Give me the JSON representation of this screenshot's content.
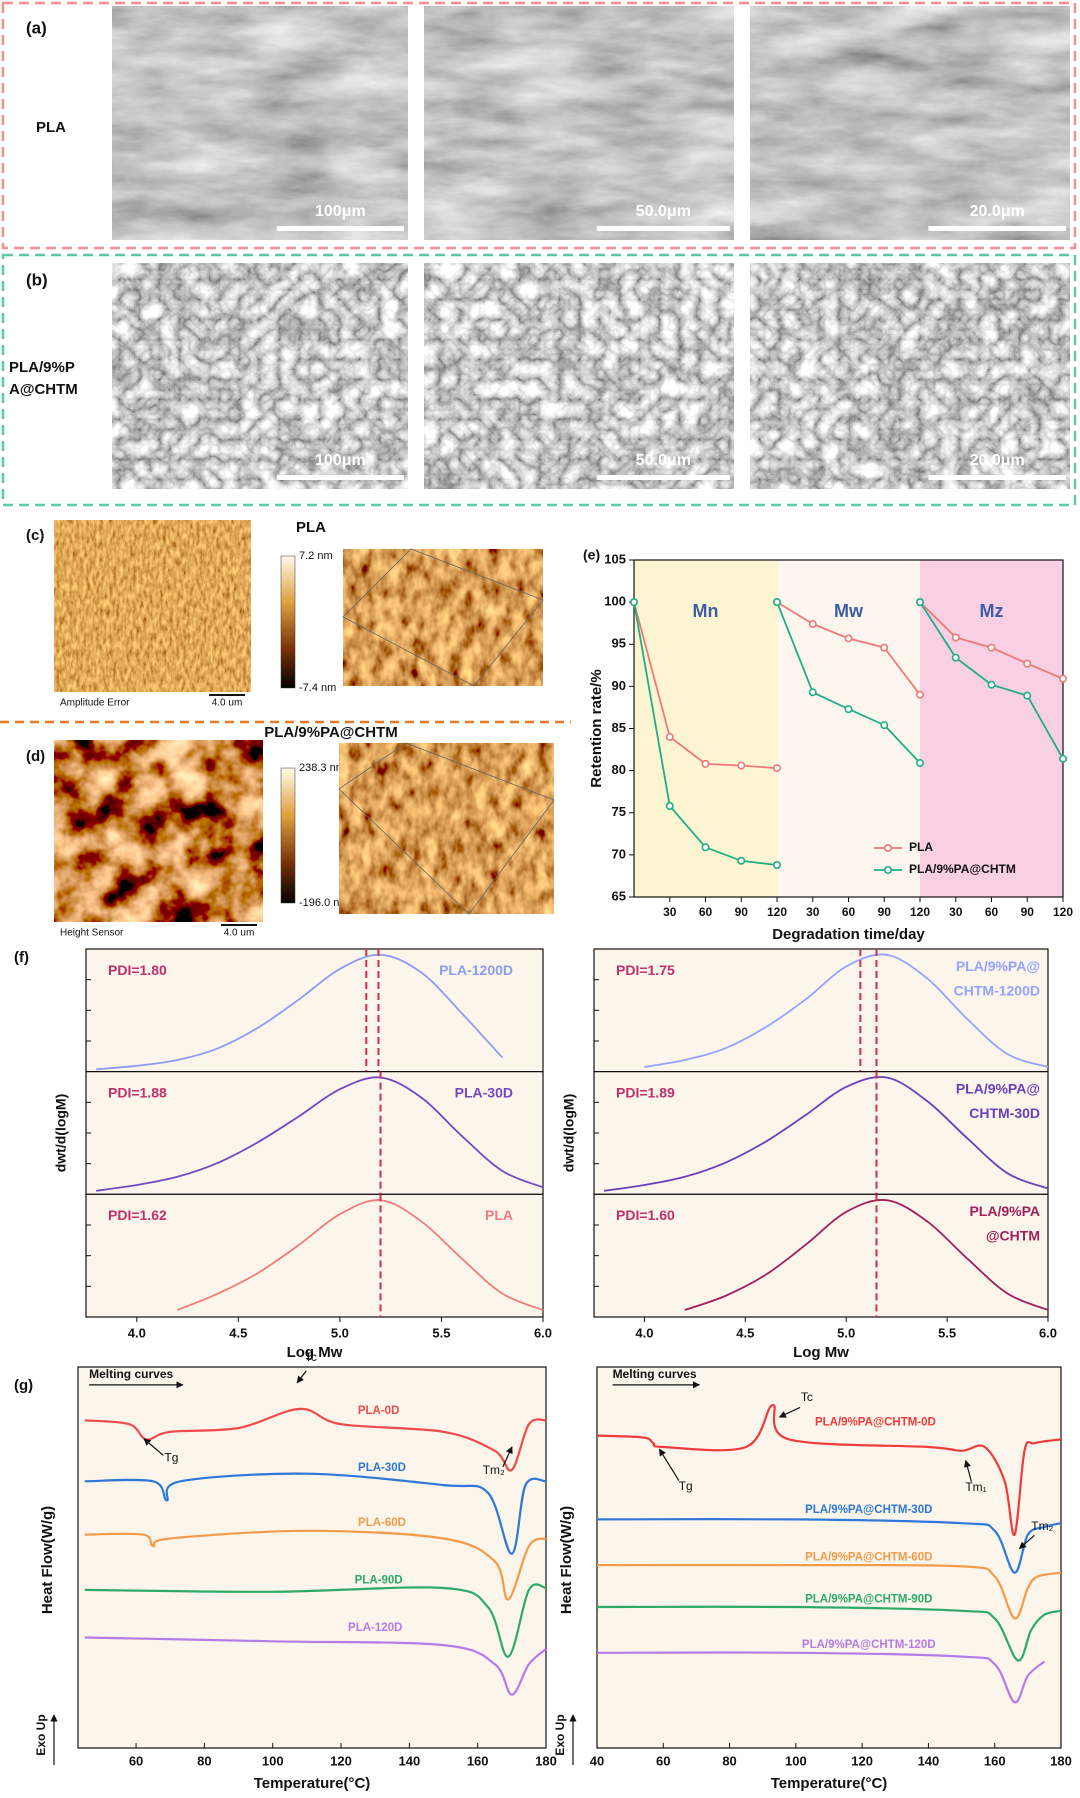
{
  "figure": {
    "a": {
      "label": "(a)",
      "sample": "PLA",
      "scale_bars": [
        "100μm",
        "50.0μm",
        "20.0μm"
      ]
    },
    "b": {
      "label": "(b)",
      "sample": [
        "PLA/9%P",
        "A@CHTM"
      ],
      "scale_bars": [
        "100μm",
        "50.0μm",
        "20.0μm"
      ]
    },
    "c": {
      "label": "(c)",
      "title": "PLA",
      "color_max": "7.2 nm",
      "color_min": "-7.4 nm",
      "channel": "Amplitude Error",
      "scale": "4.0 um"
    },
    "d": {
      "label": "(d)",
      "title": "PLA/9%PA@CHTM",
      "color_max": "238.3 nm",
      "color_min": "-196.0 nm",
      "channel": "Height Sensor",
      "scale": "4.0 um"
    }
  },
  "chart_data": [
    {
      "type": "segmented-line",
      "panel_label": "(e)",
      "y_label": "Retention rate/%",
      "x_label": "Degradation time/day",
      "ylim": [
        65,
        105
      ],
      "yticks": [
        65,
        70,
        75,
        80,
        85,
        90,
        95,
        100,
        105
      ],
      "xlim": [
        0,
        120
      ],
      "xticks": [
        30,
        60,
        90,
        120
      ],
      "x": [
        0,
        30,
        60,
        90,
        120,
        0,
        30,
        60,
        90,
        120,
        0,
        30,
        60,
        90,
        120
      ],
      "segments": [
        {
          "name": "Mn",
          "color": "#fdf5d2"
        },
        {
          "name": "Mw",
          "color": "#fdf6ee"
        },
        {
          "name": "Mz",
          "color": "#f9cfe3"
        }
      ],
      "series": [
        {
          "name": "PLA",
          "color": "#ec7a78",
          "values": [
            100,
            84,
            80.8,
            80.6,
            80.3,
            100,
            97.4,
            95.7,
            94.6,
            89,
            100,
            95.8,
            94.6,
            92.7,
            90.9
          ]
        },
        {
          "name": "PLA/9%PA@CHTM",
          "color": "#1fae86",
          "values": [
            100,
            75.8,
            70.9,
            69.3,
            68.8,
            100,
            89.3,
            87.3,
            85.4,
            80.9,
            100,
            93.4,
            90.2,
            88.9,
            81.4
          ]
        }
      ],
      "legend": "lower right"
    },
    {
      "type": "stacked-curves",
      "panel_label": "(f)",
      "y_label": "dwt/d(logM)",
      "x_label": "Log Mw",
      "xlim": [
        3.75,
        6.0
      ],
      "xticks": [
        {
          "value": 4,
          "label": "4.0"
        },
        {
          "value": 4.5,
          "label": "4.5"
        },
        {
          "value": 5,
          "label": "5.0"
        },
        {
          "value": 5.5,
          "label": "5.5"
        },
        {
          "value": 6,
          "label": "6.0"
        }
      ],
      "ylim": [
        0,
        1.05
      ],
      "x": [
        3.8,
        4.0,
        4.2,
        4.4,
        4.6,
        4.8,
        5.0,
        5.2,
        5.4,
        5.6,
        5.8,
        6.0
      ],
      "subplots": [
        {
          "label": [
            "PLA-1200D"
          ],
          "pdi": "PDI=1.80",
          "color": "#8e9cf2",
          "values": [
            0.02,
            0.05,
            0.1,
            0.2,
            0.38,
            0.62,
            0.88,
            1.0,
            0.85,
            0.5,
            0.12,
            null
          ],
          "markers": [
            5.13,
            5.19
          ]
        },
        {
          "label": [
            "PLA-30D"
          ],
          "pdi": "PDI=1.88",
          "color": "#7448c0",
          "values": [
            0.03,
            0.08,
            0.15,
            0.27,
            0.45,
            0.67,
            0.9,
            1.0,
            0.83,
            0.5,
            0.2,
            0.06
          ],
          "markers": [
            5.2
          ]
        },
        {
          "label": [
            "PLA"
          ],
          "pdi": "PDI=1.62",
          "color": "#f07c7c",
          "values": [
            null,
            null,
            0.06,
            0.2,
            0.38,
            0.62,
            0.88,
            1.0,
            0.82,
            0.5,
            0.2,
            0.06
          ],
          "markers": [
            5.2
          ]
        }
      ]
    },
    {
      "type": "stacked-curves",
      "y_label": "dwt/d(logM)",
      "x_label": "Log Mw",
      "xlim": [
        3.75,
        6.0
      ],
      "xticks": [
        {
          "value": 4,
          "label": "4.0"
        },
        {
          "value": 4.5,
          "label": "4.5"
        },
        {
          "value": 5,
          "label": "5.0"
        },
        {
          "value": 5.5,
          "label": "5.5"
        },
        {
          "value": 6,
          "label": "6.0"
        }
      ],
      "ylim": [
        0,
        1.05
      ],
      "x": [
        3.8,
        4.0,
        4.2,
        4.4,
        4.6,
        4.8,
        5.0,
        5.2,
        5.4,
        5.6,
        5.8,
        6.0
      ],
      "subplots": [
        {
          "label": [
            "PLA/9%PA@",
            "CHTM-1200D"
          ],
          "pdi": "PDI=1.75",
          "color": "#93a3ff",
          "values": [
            null,
            0.04,
            0.1,
            0.2,
            0.38,
            0.62,
            0.9,
            1.0,
            0.8,
            0.45,
            0.15,
            0.04
          ],
          "markers": [
            5.07,
            5.15
          ]
        },
        {
          "label": [
            "PLA/9%PA@",
            "CHTM-30D"
          ],
          "pdi": "PDI=1.89",
          "color": "#6a3fb8",
          "values": [
            0.03,
            0.08,
            0.15,
            0.27,
            0.45,
            0.68,
            0.92,
            1.0,
            0.8,
            0.48,
            0.18,
            0.05
          ],
          "markers": [
            5.15
          ]
        },
        {
          "label": [
            "PLA/9%PA",
            "@CHTM"
          ],
          "pdi": "PDI=1.60",
          "color": "#a0205a",
          "values": [
            null,
            null,
            0.06,
            0.18,
            0.36,
            0.62,
            0.9,
            1.0,
            0.82,
            0.5,
            0.2,
            0.06
          ],
          "markers": [
            5.15
          ]
        }
      ]
    },
    {
      "type": "dsc",
      "panel_label": "(g)",
      "y_label": "Heat Flow(W/g)",
      "x_label": "Temperature(°C)",
      "note": "Melting curves",
      "exo": "Exo Up",
      "xlim": [
        43,
        180
      ],
      "xticks": [
        60,
        80,
        100,
        120,
        140,
        160,
        180
      ],
      "ylim": [
        0,
        100
      ],
      "annotations": [
        "Tc",
        "Tg",
        "Tm₂"
      ],
      "series": [
        {
          "name": "PLA-0D",
          "color": "#ef4b4b",
          "x": [
            45,
            58,
            63,
            70,
            90,
            108,
            120,
            150,
            165,
            170,
            175,
            180
          ],
          "values": [
            86,
            85,
            81,
            83,
            84,
            89,
            85,
            83,
            78,
            73,
            85,
            86
          ]
        },
        {
          "name": "PLA-30D",
          "color": "#2f78d8",
          "x": [
            45,
            65,
            69,
            73,
            110,
            150,
            163,
            170,
            174,
            180
          ],
          "values": [
            70,
            70,
            65,
            70,
            72,
            69,
            67,
            51,
            69,
            70
          ]
        },
        {
          "name": "PLA-60D",
          "color": "#f59a48",
          "x": [
            45,
            62,
            65,
            70,
            110,
            150,
            165,
            169,
            175,
            180
          ],
          "values": [
            56,
            56,
            53,
            55,
            57,
            55,
            49,
            39,
            53,
            55
          ]
        },
        {
          "name": "PLA-90D",
          "color": "#2eaa68",
          "x": [
            45,
            100,
            150,
            163,
            169,
            175,
            180
          ],
          "values": [
            41.5,
            41,
            42,
            37,
            24,
            41.5,
            42
          ]
        },
        {
          "name": "PLA-120D",
          "color": "#b57be8",
          "x": [
            45,
            100,
            150,
            165,
            170,
            175,
            180
          ],
          "values": [
            29,
            28,
            27,
            22,
            14,
            22,
            26
          ]
        }
      ]
    },
    {
      "type": "dsc",
      "y_label": "Heat Flow(W/g)",
      "x_label": "Temperature(°C)",
      "note": "Melting curves",
      "exo": "Exo Up",
      "xlim": [
        40,
        180
      ],
      "xticks": [
        40,
        60,
        80,
        100,
        120,
        140,
        160,
        180
      ],
      "ylim": [
        0,
        100
      ],
      "annotations": [
        "Tc",
        "Tg",
        "Tm₁",
        "Tm₂"
      ],
      "series": [
        {
          "name": "PLA/9%PA@CHTM-0D",
          "color": "#ef3b3b",
          "x": [
            40,
            54,
            57,
            60,
            85,
            93,
            98,
            140,
            150,
            157,
            163,
            166,
            169,
            172,
            180
          ],
          "values": [
            82,
            81.5,
            80,
            79,
            79,
            90,
            81,
            79,
            78,
            79,
            70,
            56,
            78,
            80,
            81
          ]
        },
        {
          "name": "PLA/9%PA@CHTM-30D",
          "color": "#2f78d8",
          "x": [
            40,
            100,
            150,
            160,
            166,
            170,
            175,
            180
          ],
          "values": [
            60,
            60,
            59,
            57,
            46,
            56,
            58,
            59
          ]
        },
        {
          "name": "PLA/9%PA@CHTM-60D",
          "color": "#f59a48",
          "x": [
            40,
            100,
            150,
            160,
            166,
            170,
            173,
            180
          ],
          "values": [
            48,
            48,
            47.7,
            45,
            34,
            42,
            45,
            46
          ]
        },
        {
          "name": "PLA/9%PA@CHTM-90D",
          "color": "#2eaa68",
          "x": [
            40,
            100,
            150,
            160,
            167,
            171,
            175,
            180
          ],
          "values": [
            37,
            37,
            36,
            34,
            23,
            31,
            35,
            36
          ]
        },
        {
          "name": "PLA/9%PA@CHTM-120D",
          "color": "#b57be8",
          "x": [
            40,
            100,
            150,
            160,
            166,
            170,
            175
          ],
          "values": [
            25,
            25,
            24,
            22,
            12,
            19,
            22.7
          ]
        }
      ]
    }
  ]
}
